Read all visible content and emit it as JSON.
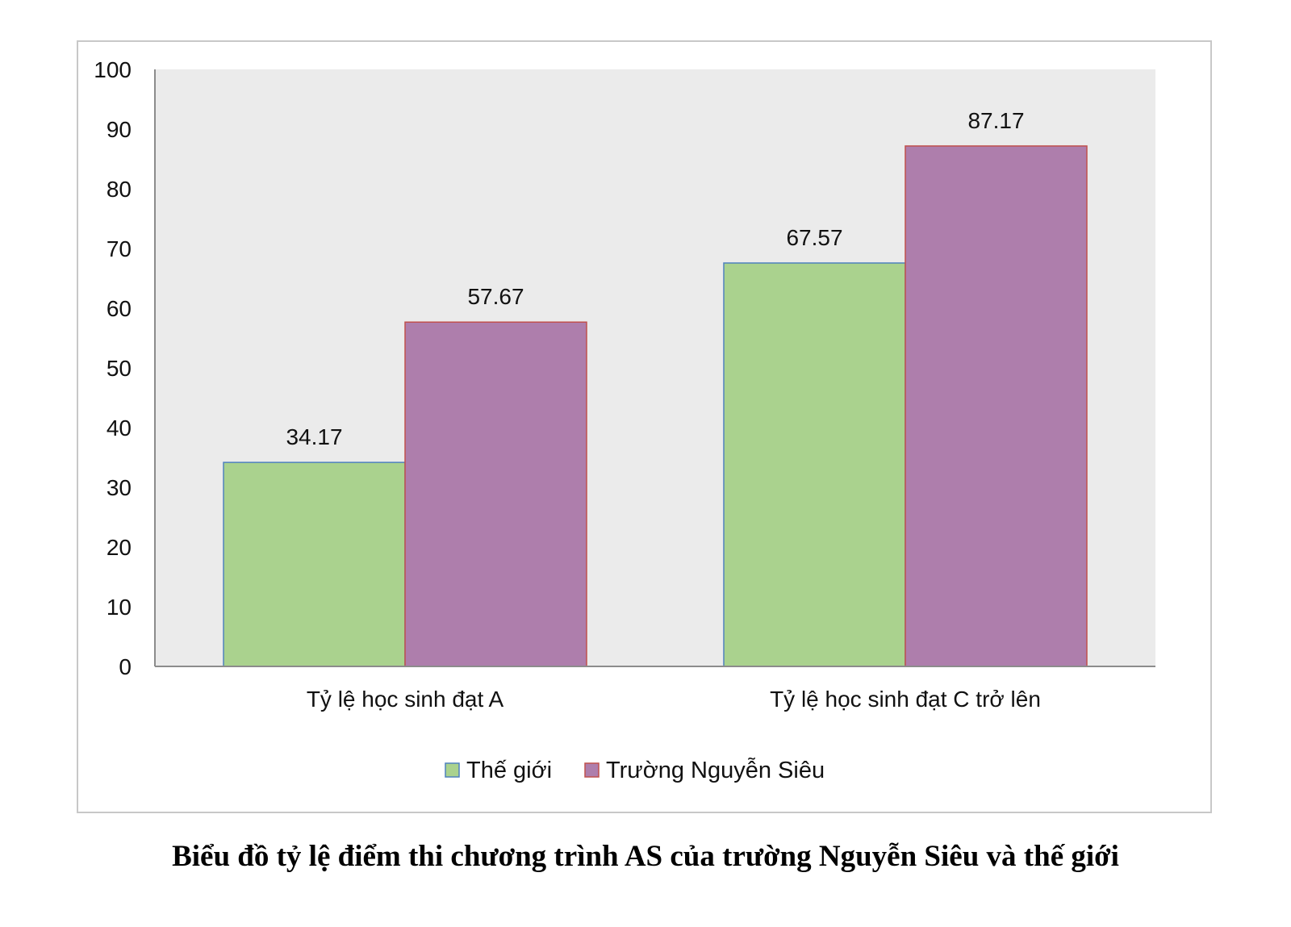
{
  "chart_data": {
    "type": "bar",
    "categories": [
      "Tỷ lệ học sinh đạt A",
      "Tỷ lệ học sinh đạt C trở lên"
    ],
    "series": [
      {
        "name": "Thế giới",
        "values": [
          34.17,
          67.57
        ],
        "color": "#aad28e",
        "stroke": "#4f81bd"
      },
      {
        "name": "Trường Nguyễn Siêu",
        "values": [
          57.67,
          87.17
        ],
        "color": "#ae7eac",
        "stroke": "#c0504d"
      }
    ],
    "data_labels": [
      [
        "34.17",
        "67.57"
      ],
      [
        "57.67",
        "87.17"
      ]
    ],
    "ylim": [
      0,
      100
    ],
    "yticks": [
      "0",
      "10",
      "20",
      "30",
      "40",
      "50",
      "60",
      "70",
      "80",
      "90",
      "100"
    ],
    "plot_background": "#ebebeb",
    "grid": false,
    "legend_position": "bottom"
  },
  "caption": "Biểu đồ tỷ lệ điểm thi chương trình AS của trường Nguyễn Siêu và thế giới"
}
